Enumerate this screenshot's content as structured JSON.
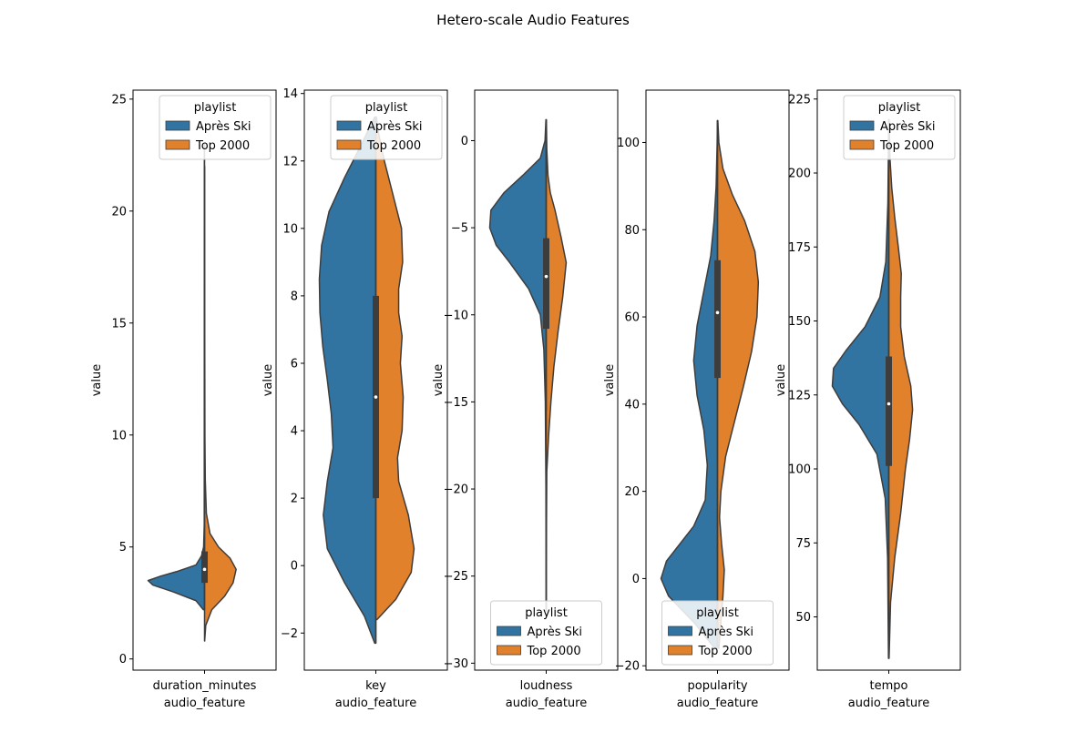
{
  "figure": {
    "title": "Hetero-scale Audio Features",
    "colors": {
      "apres_ski": "#3274a1",
      "top_2000": "#e1812c",
      "outline": "#3d3d3d",
      "box": "#3d3d3d"
    }
  },
  "chart_data": [
    {
      "type": "violin",
      "split": true,
      "category": "duration_minutes",
      "xlabel": "audio_feature",
      "ylabel": "value",
      "ylim": [
        -0.5,
        25.4
      ],
      "yticks": [
        0,
        5,
        10,
        15,
        20,
        25
      ],
      "legend": {
        "title": "playlist",
        "position": "top-right",
        "entries": [
          "Après Ski",
          "Top 2000"
        ]
      },
      "box": {
        "q1": 3.4,
        "median": 4.0,
        "q3": 4.8,
        "whisker_low": 2.2,
        "whisker_high": 6.6
      },
      "series": [
        {
          "name": "Après Ski",
          "density": [
            [
              2.2,
              0.02
            ],
            [
              2.6,
              0.14
            ],
            [
              3.0,
              0.52
            ],
            [
              3.3,
              0.85
            ],
            [
              3.5,
              0.93
            ],
            [
              3.7,
              0.72
            ],
            [
              3.9,
              0.46
            ],
            [
              4.2,
              0.14
            ],
            [
              4.6,
              0.05
            ],
            [
              5.0,
              0.015
            ],
            [
              6.0,
              0.005
            ],
            [
              23.0,
              0.003
            ]
          ]
        },
        {
          "name": "Top 2000",
          "density": [
            [
              0.8,
              0.002
            ],
            [
              1.5,
              0.02
            ],
            [
              2.2,
              0.12
            ],
            [
              2.8,
              0.33
            ],
            [
              3.4,
              0.47
            ],
            [
              4.0,
              0.52
            ],
            [
              4.5,
              0.42
            ],
            [
              5.0,
              0.23
            ],
            [
              5.6,
              0.09
            ],
            [
              6.5,
              0.03
            ],
            [
              8.0,
              0.012
            ],
            [
              10.0,
              0.006
            ],
            [
              15.0,
              0.003
            ],
            [
              22.0,
              0.002
            ]
          ]
        }
      ]
    },
    {
      "type": "violin",
      "split": true,
      "category": "key",
      "xlabel": "audio_feature",
      "ylabel": "value",
      "ylim": [
        -3.1,
        14.1
      ],
      "yticks": [
        -2,
        0,
        2,
        4,
        6,
        8,
        10,
        12,
        14
      ],
      "legend": {
        "title": "playlist",
        "position": "top-right",
        "entries": [
          "Après Ski",
          "Top 2000"
        ]
      },
      "box": {
        "q1": 2.0,
        "median": 5.0,
        "q3": 8.0,
        "whisker_low": -2.3,
        "whisker_high": 13.3
      },
      "series": [
        {
          "name": "Après Ski",
          "density": [
            [
              -2.3,
              0.02
            ],
            [
              -1.5,
              0.2
            ],
            [
              -0.5,
              0.55
            ],
            [
              0.5,
              0.85
            ],
            [
              1.5,
              0.92
            ],
            [
              2.5,
              0.85
            ],
            [
              3.5,
              0.75
            ],
            [
              4.5,
              0.78
            ],
            [
              5.5,
              0.85
            ],
            [
              6.5,
              0.93
            ],
            [
              7.5,
              0.98
            ],
            [
              8.5,
              0.99
            ],
            [
              9.5,
              0.95
            ],
            [
              10.5,
              0.82
            ],
            [
              11.5,
              0.55
            ],
            [
              12.5,
              0.25
            ],
            [
              13.3,
              0.02
            ]
          ]
        },
        {
          "name": "Top 2000",
          "density": [
            [
              -1.6,
              0.02
            ],
            [
              -1.0,
              0.35
            ],
            [
              -0.2,
              0.62
            ],
            [
              0.5,
              0.67
            ],
            [
              1.5,
              0.57
            ],
            [
              2.5,
              0.4
            ],
            [
              3.2,
              0.38
            ],
            [
              4.0,
              0.46
            ],
            [
              5.0,
              0.48
            ],
            [
              6.0,
              0.43
            ],
            [
              6.8,
              0.46
            ],
            [
              7.5,
              0.4
            ],
            [
              8.2,
              0.4
            ],
            [
              9.0,
              0.47
            ],
            [
              10.0,
              0.45
            ],
            [
              11.0,
              0.3
            ],
            [
              12.0,
              0.15
            ],
            [
              12.8,
              0.05
            ],
            [
              13.3,
              0.01
            ]
          ]
        }
      ]
    },
    {
      "type": "violin",
      "split": true,
      "category": "loudness",
      "xlabel": "audio_feature",
      "ylabel": "value",
      "ylim": [
        -30.4,
        2.9
      ],
      "yticks": [
        0,
        -5,
        -10,
        -15,
        -20,
        -25,
        -30
      ],
      "legend": {
        "title": "playlist",
        "position": "bottom-center",
        "entries": [
          "Après Ski",
          "Top 2000"
        ]
      },
      "box": {
        "q1": -10.8,
        "median": -7.8,
        "q3": -5.6,
        "whisker_low": -15.5,
        "whisker_high": 1.2
      },
      "series": [
        {
          "name": "Après Ski",
          "density": [
            [
              -27,
              0.002
            ],
            [
              -20,
              0.005
            ],
            [
              -15,
              0.015
            ],
            [
              -12,
              0.04
            ],
            [
              -10,
              0.1
            ],
            [
              -8.5,
              0.3
            ],
            [
              -7,
              0.62
            ],
            [
              -6,
              0.85
            ],
            [
              -5,
              0.96
            ],
            [
              -4,
              0.94
            ],
            [
              -3,
              0.72
            ],
            [
              -2,
              0.4
            ],
            [
              -1,
              0.1
            ],
            [
              0,
              0.02
            ],
            [
              1.2,
              0.005
            ]
          ]
        },
        {
          "name": "Top 2000",
          "density": [
            [
              -27,
              0.002
            ],
            [
              -22,
              0.005
            ],
            [
              -19,
              0.01
            ],
            [
              -17,
              0.04
            ],
            [
              -15,
              0.08
            ],
            [
              -13,
              0.13
            ],
            [
              -11,
              0.2
            ],
            [
              -9,
              0.28
            ],
            [
              -7,
              0.34
            ],
            [
              -5.5,
              0.25
            ],
            [
              -4,
              0.15
            ],
            [
              -3,
              0.07
            ],
            [
              -2,
              0.03
            ],
            [
              -0.5,
              0.01
            ],
            [
              1.2,
              0.003
            ]
          ]
        }
      ]
    },
    {
      "type": "violin",
      "split": true,
      "category": "popularity",
      "xlabel": "audio_feature",
      "ylabel": "value",
      "ylim": [
        -21.0,
        112.0
      ],
      "yticks": [
        -20,
        0,
        20,
        40,
        60,
        80,
        100
      ],
      "legend": {
        "title": "playlist",
        "position": "bottom-center",
        "entries": [
          "Après Ski",
          "Top 2000"
        ]
      },
      "box": {
        "q1": 46,
        "median": 61,
        "q3": 73,
        "whisker_low": -16,
        "whisker_high": 105
      },
      "series": [
        {
          "name": "Après Ski",
          "density": [
            [
              -16,
              0.04
            ],
            [
              -10,
              0.35
            ],
            [
              -4,
              0.72
            ],
            [
              0,
              0.83
            ],
            [
              4,
              0.75
            ],
            [
              8,
              0.55
            ],
            [
              12,
              0.35
            ],
            [
              18,
              0.18
            ],
            [
              26,
              0.15
            ],
            [
              34,
              0.2
            ],
            [
              42,
              0.3
            ],
            [
              50,
              0.35
            ],
            [
              58,
              0.3
            ],
            [
              66,
              0.2
            ],
            [
              74,
              0.1
            ],
            [
              82,
              0.05
            ],
            [
              90,
              0.02
            ],
            [
              100,
              0.005
            ],
            [
              105,
              0.001
            ]
          ]
        },
        {
          "name": "Top 2000",
          "density": [
            [
              -16,
              0.02
            ],
            [
              -10,
              0.05
            ],
            [
              -4,
              0.08
            ],
            [
              2,
              0.1
            ],
            [
              8,
              0.06
            ],
            [
              14,
              0.03
            ],
            [
              20,
              0.05
            ],
            [
              28,
              0.12
            ],
            [
              36,
              0.25
            ],
            [
              44,
              0.38
            ],
            [
              52,
              0.5
            ],
            [
              60,
              0.58
            ],
            [
              68,
              0.6
            ],
            [
              75,
              0.55
            ],
            [
              82,
              0.4
            ],
            [
              88,
              0.22
            ],
            [
              94,
              0.08
            ],
            [
              100,
              0.02
            ],
            [
              105,
              0.005
            ]
          ]
        }
      ]
    },
    {
      "type": "violin",
      "split": true,
      "category": "tempo",
      "xlabel": "audio_feature",
      "ylabel": "value",
      "ylim": [
        32.0,
        228.0
      ],
      "yticks": [
        50,
        75,
        100,
        125,
        150,
        175,
        200,
        225
      ],
      "legend": {
        "title": "playlist",
        "position": "top-right",
        "entries": [
          "Après Ski",
          "Top 2000"
        ]
      },
      "box": {
        "q1": 101,
        "median": 122,
        "q3": 138,
        "whisker_low": 36,
        "whisker_high": 218
      },
      "series": [
        {
          "name": "Après Ski",
          "density": [
            [
              36,
              0.005
            ],
            [
              70,
              0.02
            ],
            [
              90,
              0.06
            ],
            [
              105,
              0.2
            ],
            [
              115,
              0.5
            ],
            [
              122,
              0.78
            ],
            [
              128,
              0.95
            ],
            [
              134,
              0.93
            ],
            [
              140,
              0.72
            ],
            [
              148,
              0.4
            ],
            [
              158,
              0.15
            ],
            [
              170,
              0.05
            ],
            [
              190,
              0.015
            ],
            [
              210,
              0.005
            ],
            [
              218,
              0.002
            ]
          ]
        },
        {
          "name": "Top 2000",
          "density": [
            [
              36,
              0.005
            ],
            [
              55,
              0.03
            ],
            [
              70,
              0.1
            ],
            [
              85,
              0.2
            ],
            [
              100,
              0.28
            ],
            [
              110,
              0.35
            ],
            [
              120,
              0.4
            ],
            [
              128,
              0.37
            ],
            [
              138,
              0.26
            ],
            [
              148,
              0.2
            ],
            [
              158,
              0.2
            ],
            [
              166,
              0.21
            ],
            [
              175,
              0.16
            ],
            [
              185,
              0.1
            ],
            [
              195,
              0.05
            ],
            [
              205,
              0.02
            ],
            [
              218,
              0.005
            ]
          ]
        }
      ]
    }
  ]
}
